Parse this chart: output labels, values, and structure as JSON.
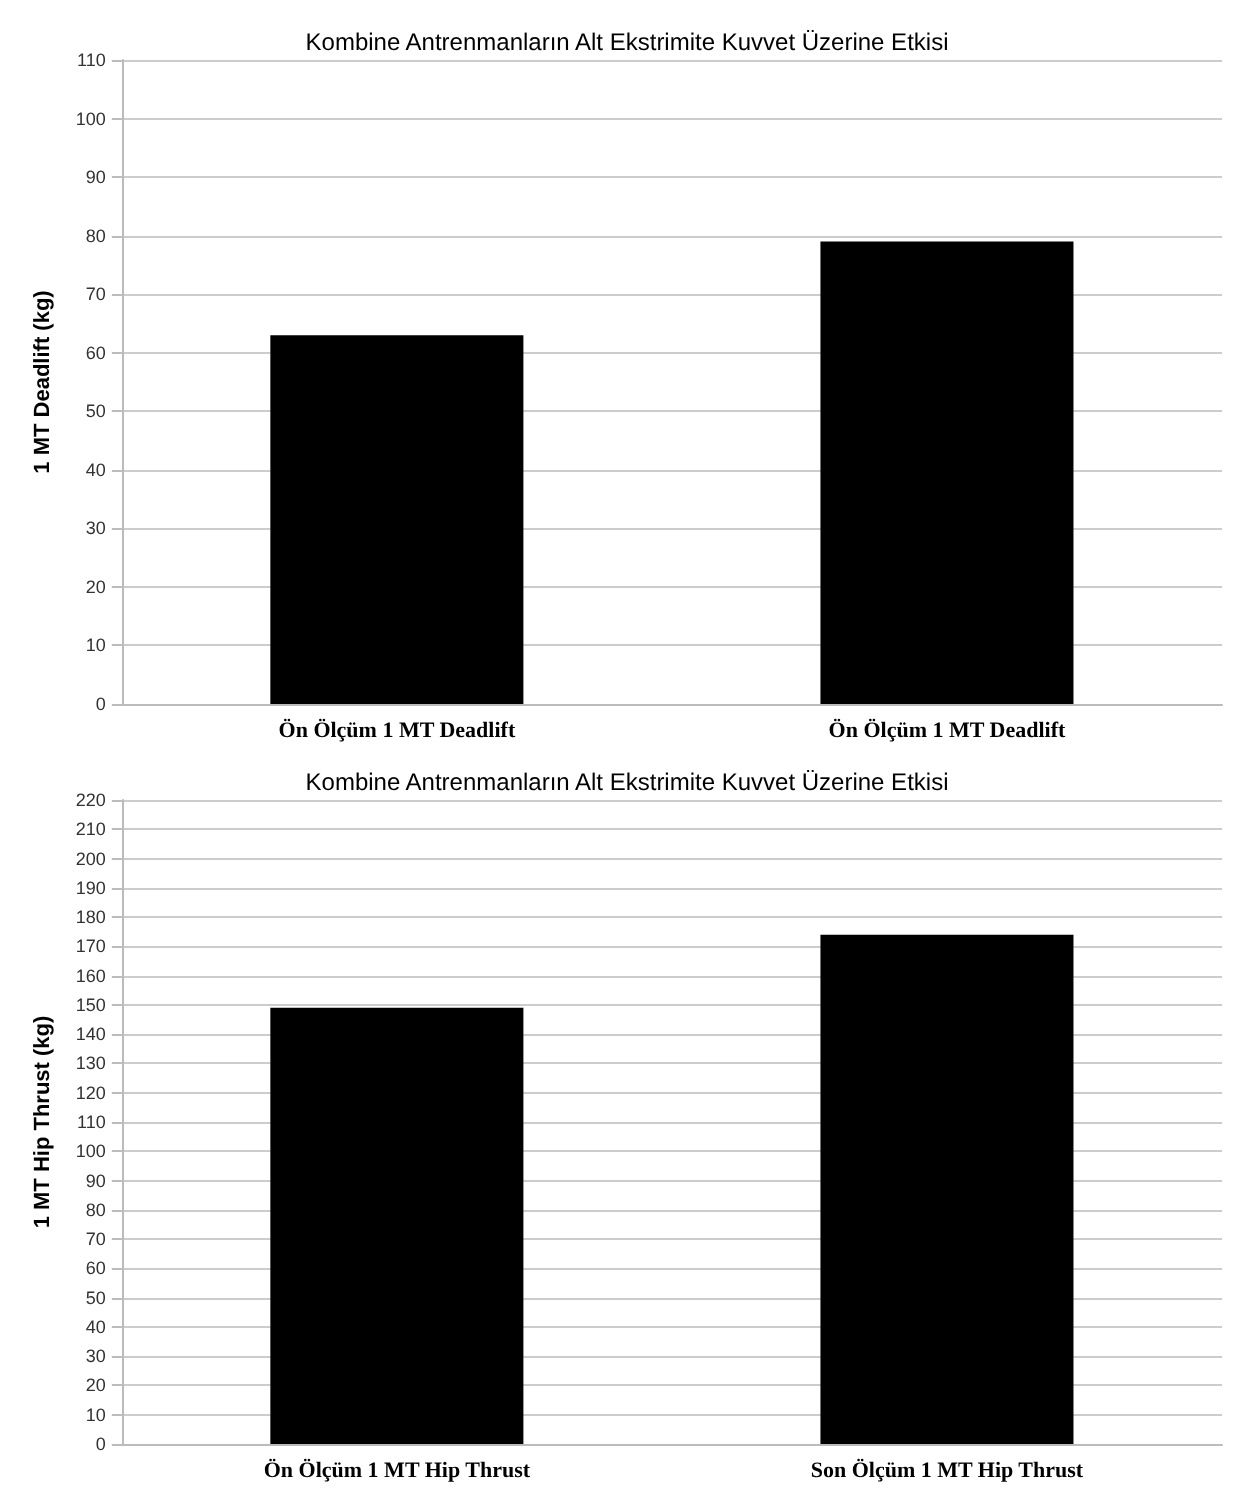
{
  "chart_data": [
    {
      "type": "bar",
      "title": "Kombine Antrenmanların Alt Ekstrimite Kuvvet Üzerine Etkisi",
      "ylabel": "1 MT Deadlift (kg)",
      "categories": [
        "Ön Ölçüm 1 MT Deadlift",
        "Ön Ölçüm 1 MT Deadlift"
      ],
      "values": [
        63,
        79
      ],
      "color": "#000000",
      "ylim": [
        0,
        110
      ],
      "yticks": [
        0,
        10,
        20,
        30,
        40,
        50,
        60,
        70,
        80,
        90,
        100,
        110
      ],
      "grid": "y"
    },
    {
      "type": "bar",
      "title": "Kombine Antrenmanların Alt Ekstrimite Kuvvet Üzerine Etkisi",
      "ylabel": "1 MT Hip Thrust (kg)",
      "categories": [
        "Ön Ölçüm 1 MT Hip Thrust",
        "Son Ölçüm 1 MT Hip Thrust"
      ],
      "values": [
        149,
        174
      ],
      "color": "#000000",
      "ylim": [
        0,
        220
      ],
      "yticks": [
        0,
        10,
        20,
        30,
        40,
        50,
        60,
        70,
        80,
        90,
        100,
        110,
        120,
        130,
        140,
        150,
        160,
        170,
        180,
        190,
        200,
        210,
        220
      ],
      "grid": "y"
    }
  ]
}
